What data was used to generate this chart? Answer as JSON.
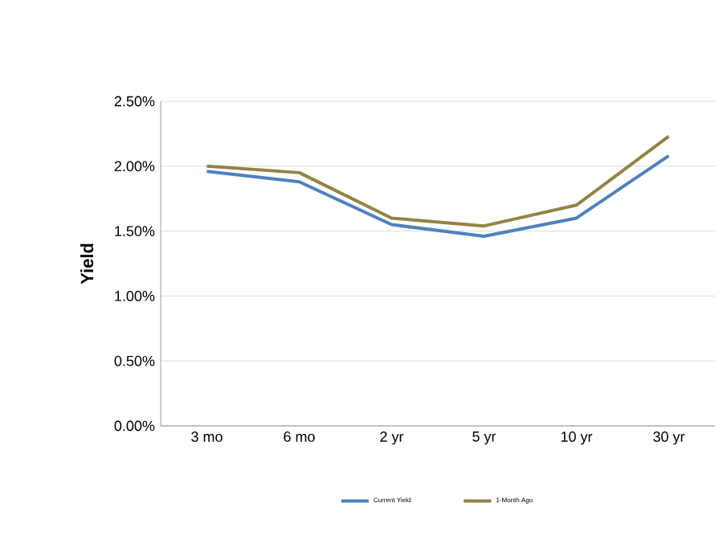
{
  "chart_data": {
    "type": "line",
    "ylabel": "Yield",
    "categories": [
      "3 mo",
      "6 mo",
      "2 yr",
      "5 yr",
      "10 yr",
      "30 yr"
    ],
    "series": [
      {
        "name": "Current Yield",
        "color": "#4f81bd",
        "values": [
          1.96,
          1.88,
          1.55,
          1.46,
          1.6,
          2.08
        ]
      },
      {
        "name": "1-Month Ago",
        "color": "#938345",
        "values": [
          2.0,
          1.95,
          1.6,
          1.54,
          1.7,
          2.23
        ]
      }
    ],
    "ylim": [
      0,
      2.5
    ],
    "yticks": [
      {
        "value": 0,
        "label": "0.00%"
      },
      {
        "value": 0.5,
        "label": "0.50%"
      },
      {
        "value": 1,
        "label": "1.00%"
      },
      {
        "value": 1.5,
        "label": "1.50%"
      },
      {
        "value": 2,
        "label": "2.00%"
      },
      {
        "value": 2.5,
        "label": "2.50%"
      }
    ],
    "grid": "y",
    "legend": "bottom",
    "line_style": "solid",
    "marker": "none"
  }
}
